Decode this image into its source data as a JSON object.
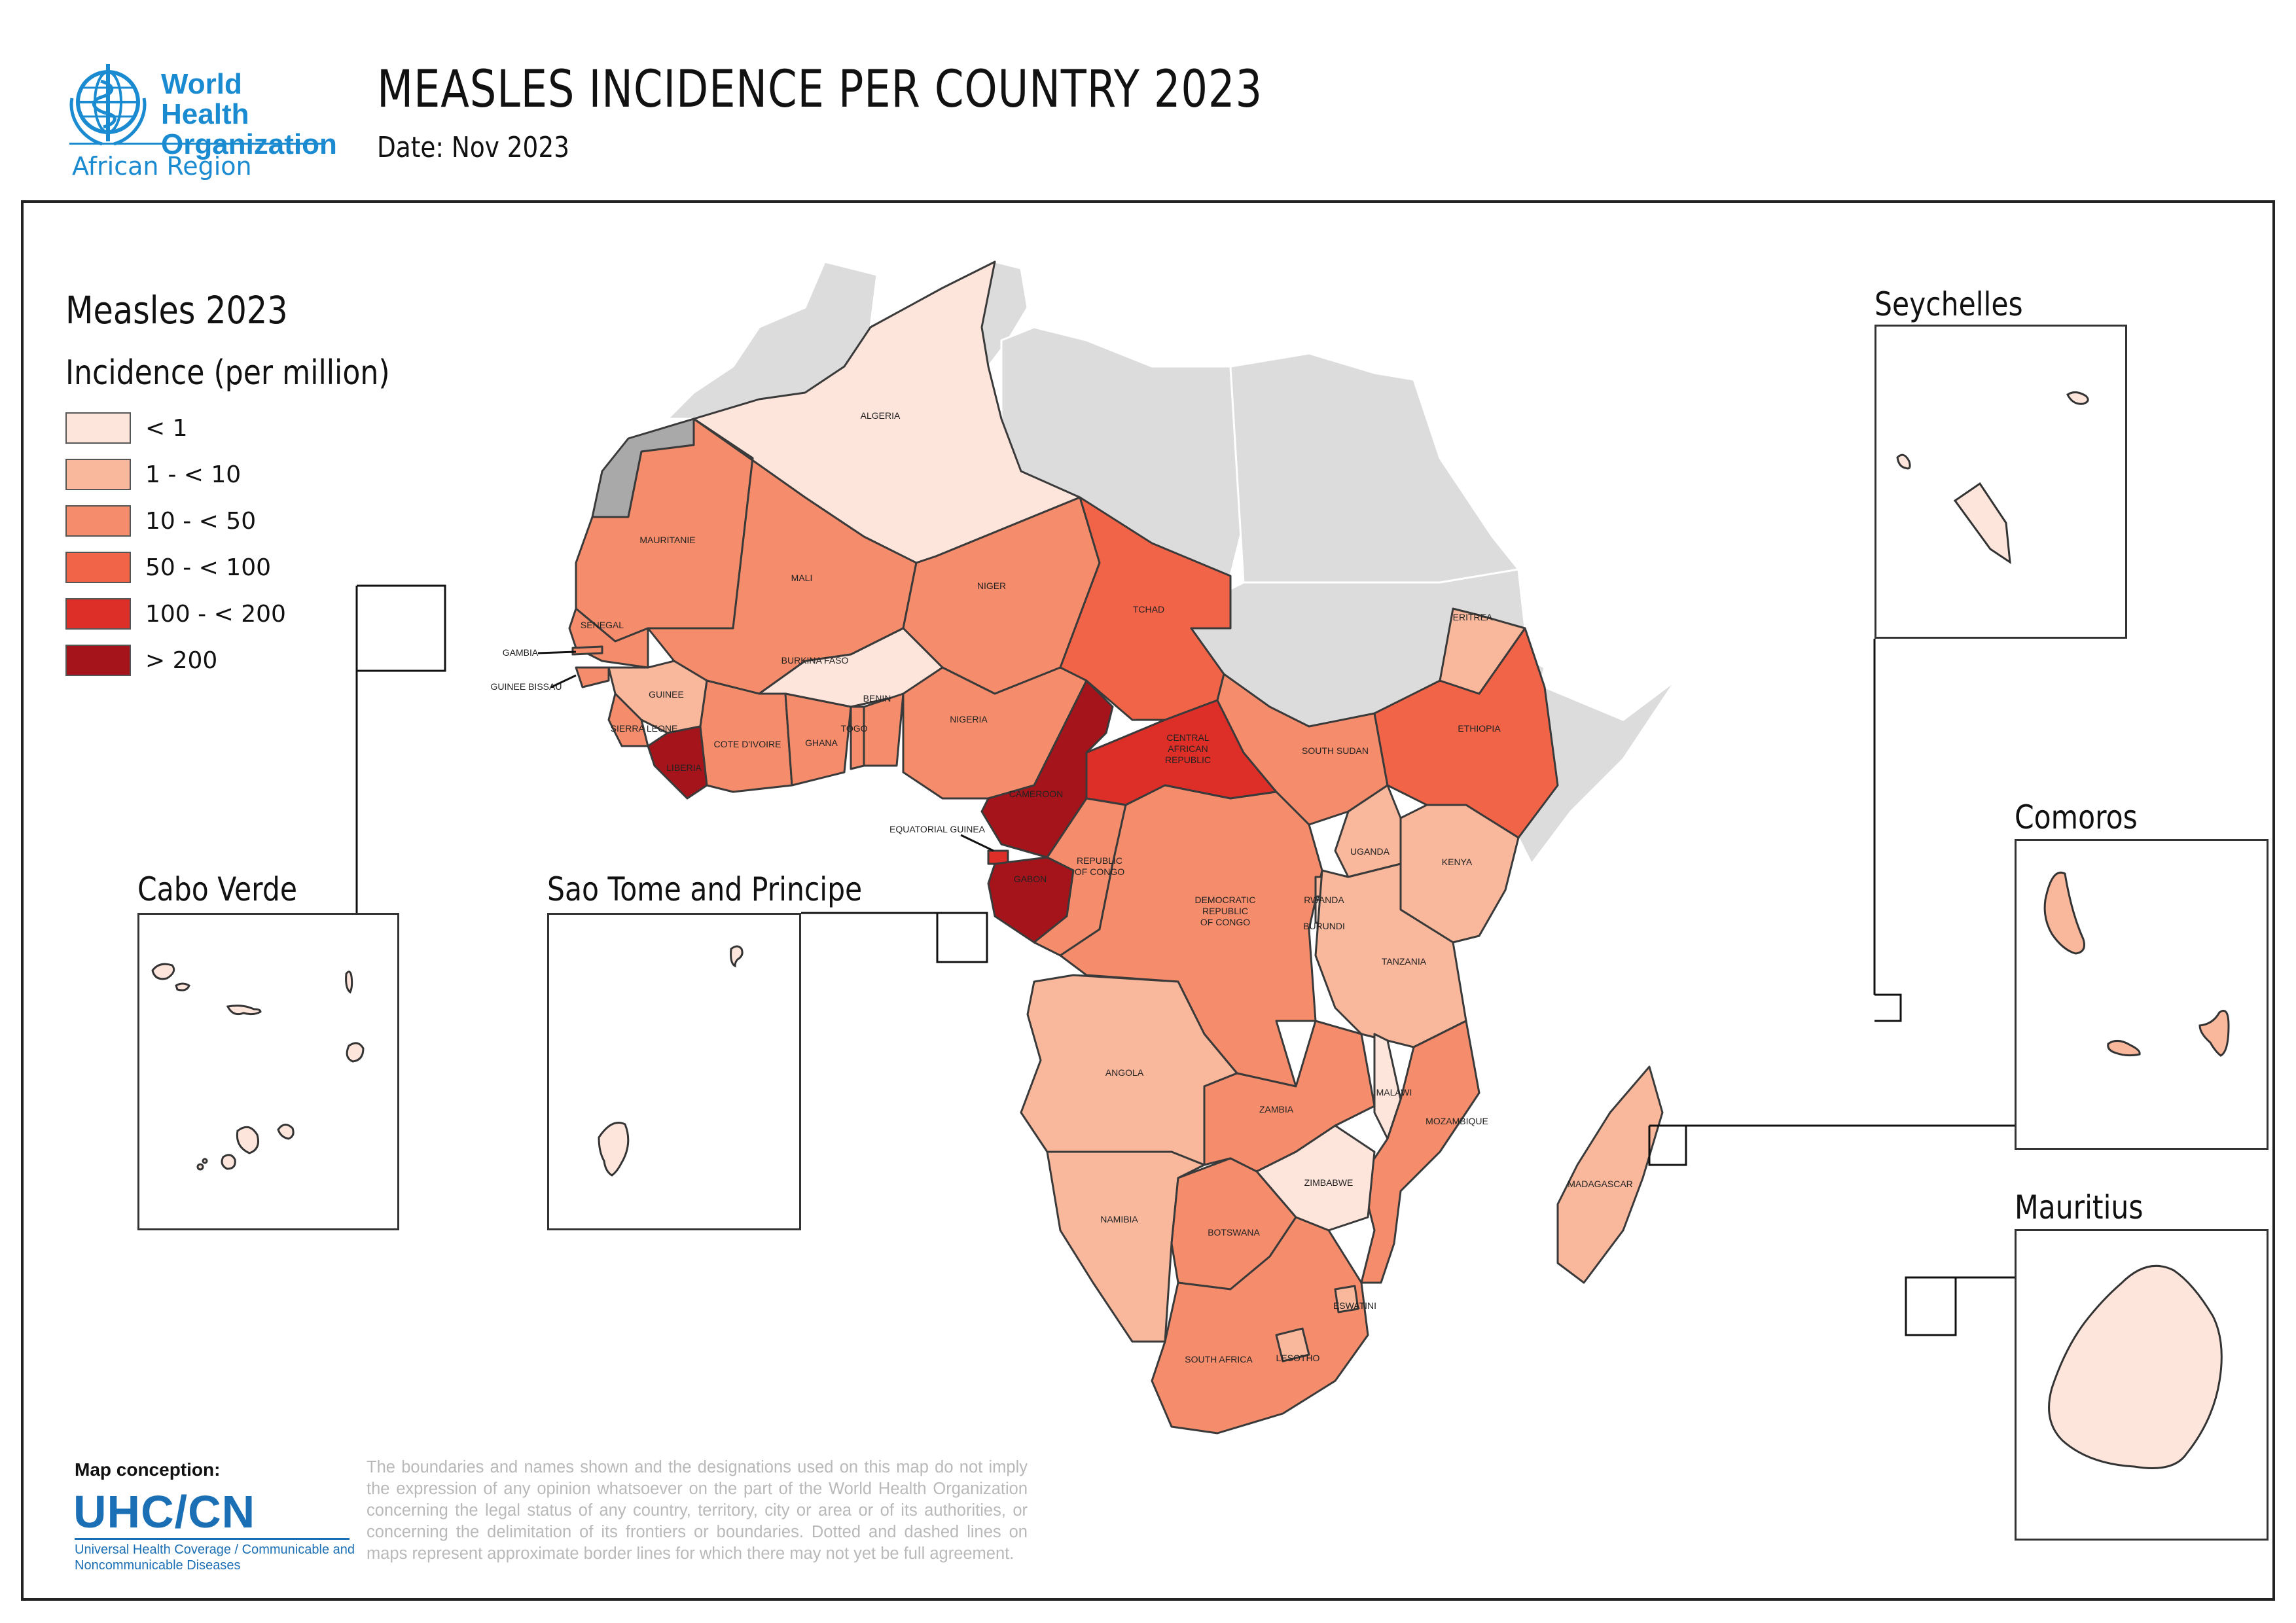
{
  "header": {
    "org_name_line1": "World Health",
    "org_name_line2": "Organization",
    "region": "African Region",
    "title": "MEASLES INCIDENCE PER COUNTRY 2023",
    "date": "Date: Nov 2023"
  },
  "legend": {
    "title": "Measles 2023",
    "subtitle": "Incidence (per million)",
    "classes": [
      {
        "label": "< 1",
        "color": "#fde5dc"
      },
      {
        "label": "1 - < 10",
        "color": "#f9b79c"
      },
      {
        "label": "10 - < 50",
        "color": "#f58d6c"
      },
      {
        "label": "50 - < 100",
        "color": "#f26448"
      },
      {
        "label": "100 - < 200",
        "color": "#dd2e27"
      },
      {
        "label": "> 200",
        "color": "#a5141b"
      }
    ]
  },
  "colors": {
    "non_region": "#dcdcdc",
    "disputed": "#a9a9a9",
    "border": "#3a3a3a"
  },
  "insets": {
    "cabo_verde": "Cabo Verde",
    "sao_tome": "Sao Tome and Principe",
    "seychelles": "Seychelles",
    "comoros": "Comoros",
    "mauritius": "Mauritius"
  },
  "countries": {
    "algeria": "ALGERIA",
    "mauritanie": "MAURITANIE",
    "mali": "MALI",
    "niger": "NIGER",
    "tchad": "TCHAD",
    "senegal": "SENEGAL",
    "gambia": "GAMBIA",
    "guinee_bissau": "GUINEE BISSAU",
    "guinee": "GUINEE",
    "sierra_leone": "SIERRA LEONE",
    "liberia": "LIBERIA",
    "cote_divoire": "COTE D'IVOIRE",
    "burkina_faso": "BURKINA FASO",
    "ghana": "GHANA",
    "togo": "TOGO",
    "benin": "BENIN",
    "nigeria": "NIGERIA",
    "cameroon": "CAMEROON",
    "car": "CENTRAL AFRICAN REPUBLIC",
    "south_sudan": "SOUTH SUDAN",
    "ethiopia": "ETHIOPIA",
    "eritrea": "ERITREA",
    "equatorial_guinea": "EQUATORIAL GUINEA",
    "gabon": "GABON",
    "congo": "REPUBLIC OF CONGO",
    "drc": "DEMOCRATIC REPUBLIC OF CONGO",
    "uganda": "UGANDA",
    "kenya": "KENYA",
    "rwanda": "RWANDA",
    "burundi": "BURUNDI",
    "tanzania": "TANZANIA",
    "angola": "ANGOLA",
    "zambia": "ZAMBIA",
    "malawi": "MALAWI",
    "mozambique": "MOZAMBIQUE",
    "zimbabwe": "ZIMBABWE",
    "namibia": "NAMIBIA",
    "botswana": "BOTSWANA",
    "eswatini": "ESWATINI",
    "lesotho": "LESOTHO",
    "south_africa": "SOUTH AFRICA",
    "madagascar": "MADAGASCAR"
  },
  "footer": {
    "conception_label": "Map conception:",
    "unit_name": "UHC/CN",
    "unit_full": "Universal Health Coverage / Communicable and Noncommunicable Diseases",
    "disclaimer": "The boundaries and names shown and the designations used on this map do not imply the expression of any opinion whatsoever on the part of the World Health Organization concerning the legal status of any country, territory, city or area or of its authorities, or concerning the delimitation of its frontiers or boundaries. Dotted and dashed lines on maps represent approximate border lines for which there may not yet be full agreement."
  }
}
